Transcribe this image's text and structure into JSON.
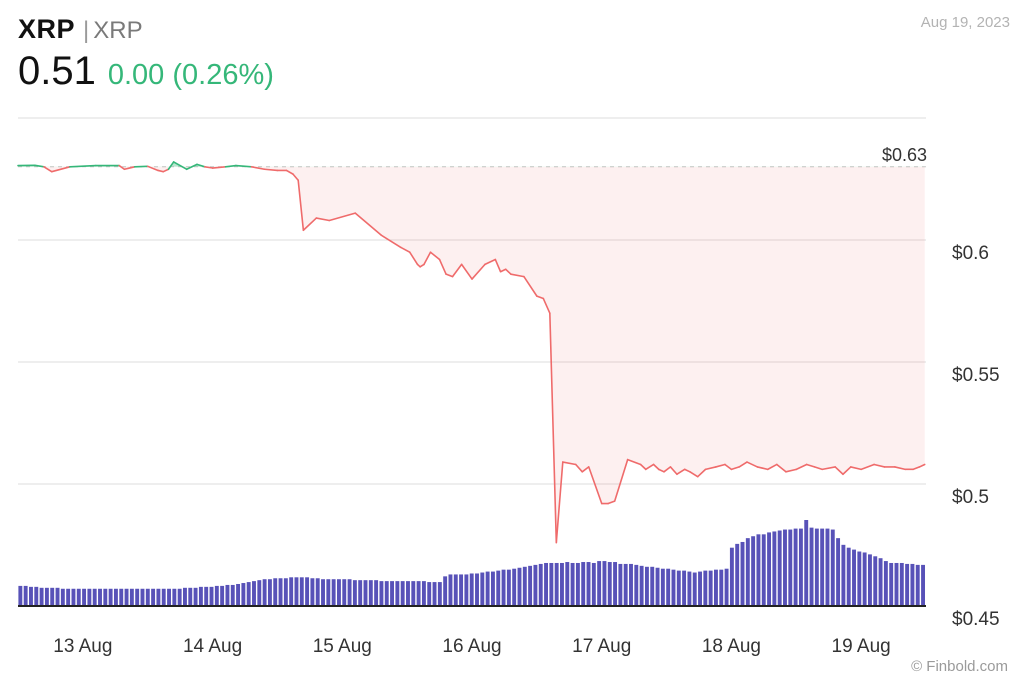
{
  "header": {
    "symbol": "XRP",
    "separator": "|",
    "name": "XRP",
    "price": "0.51",
    "change": "0.00 (0.26%)",
    "date": "Aug 19, 2023"
  },
  "watermark": "© Finbold.com",
  "colors": {
    "up": "#35b779",
    "down": "#ef6b6b",
    "volume": "#5852b8",
    "grid": "#dddddd",
    "reference": "#c8c8c8"
  },
  "chart_data": {
    "type": "line",
    "ylim": [
      0.45,
      0.65
    ],
    "y_ticks": [
      {
        "value": 0.6,
        "label": "$0.6"
      },
      {
        "value": 0.55,
        "label": "$0.55"
      },
      {
        "value": 0.5,
        "label": "$0.5"
      },
      {
        "value": 0.45,
        "label": "$0.45"
      }
    ],
    "reference": {
      "value": 0.63,
      "label": "$0.63"
    },
    "x_tick_labels": [
      "13 Aug",
      "14 Aug",
      "15 Aug",
      "16 Aug",
      "17 Aug",
      "18 Aug",
      "19 Aug"
    ],
    "x_range": [
      0,
      7
    ],
    "series": [
      {
        "x": [
          0.0,
          0.13,
          0.2,
          0.26,
          0.4,
          0.6,
          0.78,
          0.82,
          0.9,
          1.0,
          1.08,
          1.12,
          1.16,
          1.2,
          1.3,
          1.38,
          1.44,
          1.5,
          1.6,
          1.68,
          1.8,
          1.9,
          2.0,
          2.07,
          2.12,
          2.16,
          2.2,
          2.3,
          2.4,
          2.6,
          2.8,
          2.95,
          3.02,
          3.08,
          3.1,
          3.13,
          3.18,
          3.25,
          3.3,
          3.35,
          3.42,
          3.5,
          3.6,
          3.68,
          3.72,
          3.76,
          3.8,
          3.9,
          4.0,
          4.05,
          4.1,
          4.15,
          4.2,
          4.3,
          4.35,
          4.4,
          4.5,
          4.55,
          4.6,
          4.7,
          4.8,
          4.84,
          4.9,
          4.94,
          4.98,
          5.03,
          5.08,
          5.14,
          5.18,
          5.24,
          5.3,
          5.38,
          5.45,
          5.5,
          5.56,
          5.62,
          5.7,
          5.78,
          5.85,
          5.92,
          6.0,
          6.08,
          6.14,
          6.2,
          6.3,
          6.36,
          6.42,
          6.5,
          6.6,
          6.68,
          6.76,
          6.84,
          6.9,
          6.95,
          6.99
        ],
        "y": [
          0.6305,
          0.6306,
          0.63,
          0.628,
          0.63,
          0.6305,
          0.6305,
          0.629,
          0.63,
          0.6302,
          0.6285,
          0.628,
          0.629,
          0.632,
          0.629,
          0.631,
          0.63,
          0.6295,
          0.63,
          0.6305,
          0.63,
          0.629,
          0.6285,
          0.6285,
          0.627,
          0.6245,
          0.604,
          0.609,
          0.608,
          0.611,
          0.602,
          0.597,
          0.595,
          0.59,
          0.589,
          0.59,
          0.595,
          0.592,
          0.586,
          0.585,
          0.59,
          0.584,
          0.59,
          0.592,
          0.587,
          0.588,
          0.586,
          0.585,
          0.577,
          0.576,
          0.57,
          0.476,
          0.509,
          0.508,
          0.505,
          0.507,
          0.492,
          0.492,
          0.493,
          0.51,
          0.508,
          0.506,
          0.508,
          0.506,
          0.505,
          0.507,
          0.504,
          0.506,
          0.505,
          0.503,
          0.506,
          0.507,
          0.508,
          0.506,
          0.507,
          0.509,
          0.507,
          0.506,
          0.508,
          0.505,
          0.506,
          0.508,
          0.507,
          0.506,
          0.507,
          0.504,
          0.507,
          0.506,
          0.508,
          0.507,
          0.507,
          0.506,
          0.506,
          0.507,
          0.508
        ]
      }
    ],
    "volume": [
      20,
      20,
      19,
      19,
      18,
      18,
      18,
      18,
      17,
      17,
      17,
      17,
      17,
      17,
      17,
      17,
      17,
      17,
      17,
      17,
      17,
      17,
      17,
      17,
      17,
      17,
      17,
      17,
      17,
      17,
      17,
      18,
      18,
      18,
      19,
      19,
      19,
      20,
      20,
      21,
      21,
      22,
      23,
      24,
      25,
      26,
      27,
      27,
      28,
      28,
      28,
      29,
      29,
      29,
      29,
      28,
      28,
      27,
      27,
      27,
      27,
      27,
      27,
      26,
      26,
      26,
      26,
      26,
      25,
      25,
      25,
      25,
      25,
      25,
      25,
      25,
      25,
      24,
      24,
      24,
      30,
      32,
      32,
      32,
      32,
      33,
      33,
      34,
      35,
      35,
      36,
      37,
      37,
      38,
      39,
      40,
      41,
      42,
      43,
      44,
      44,
      44,
      44,
      45,
      44,
      44,
      45,
      45,
      44,
      46,
      46,
      45,
      45,
      43,
      43,
      43,
      42,
      41,
      40,
      40,
      39,
      38,
      38,
      37,
      36,
      36,
      35,
      34,
      35,
      36,
      36,
      37,
      37,
      38,
      60,
      64,
      66,
      70,
      72,
      74,
      74,
      76,
      77,
      78,
      79,
      79,
      80,
      80,
      89,
      81,
      80,
      80,
      80,
      79,
      70,
      63,
      60,
      58,
      56,
      55,
      53,
      51,
      49,
      46,
      44,
      44,
      44,
      43,
      43,
      42,
      42
    ]
  }
}
